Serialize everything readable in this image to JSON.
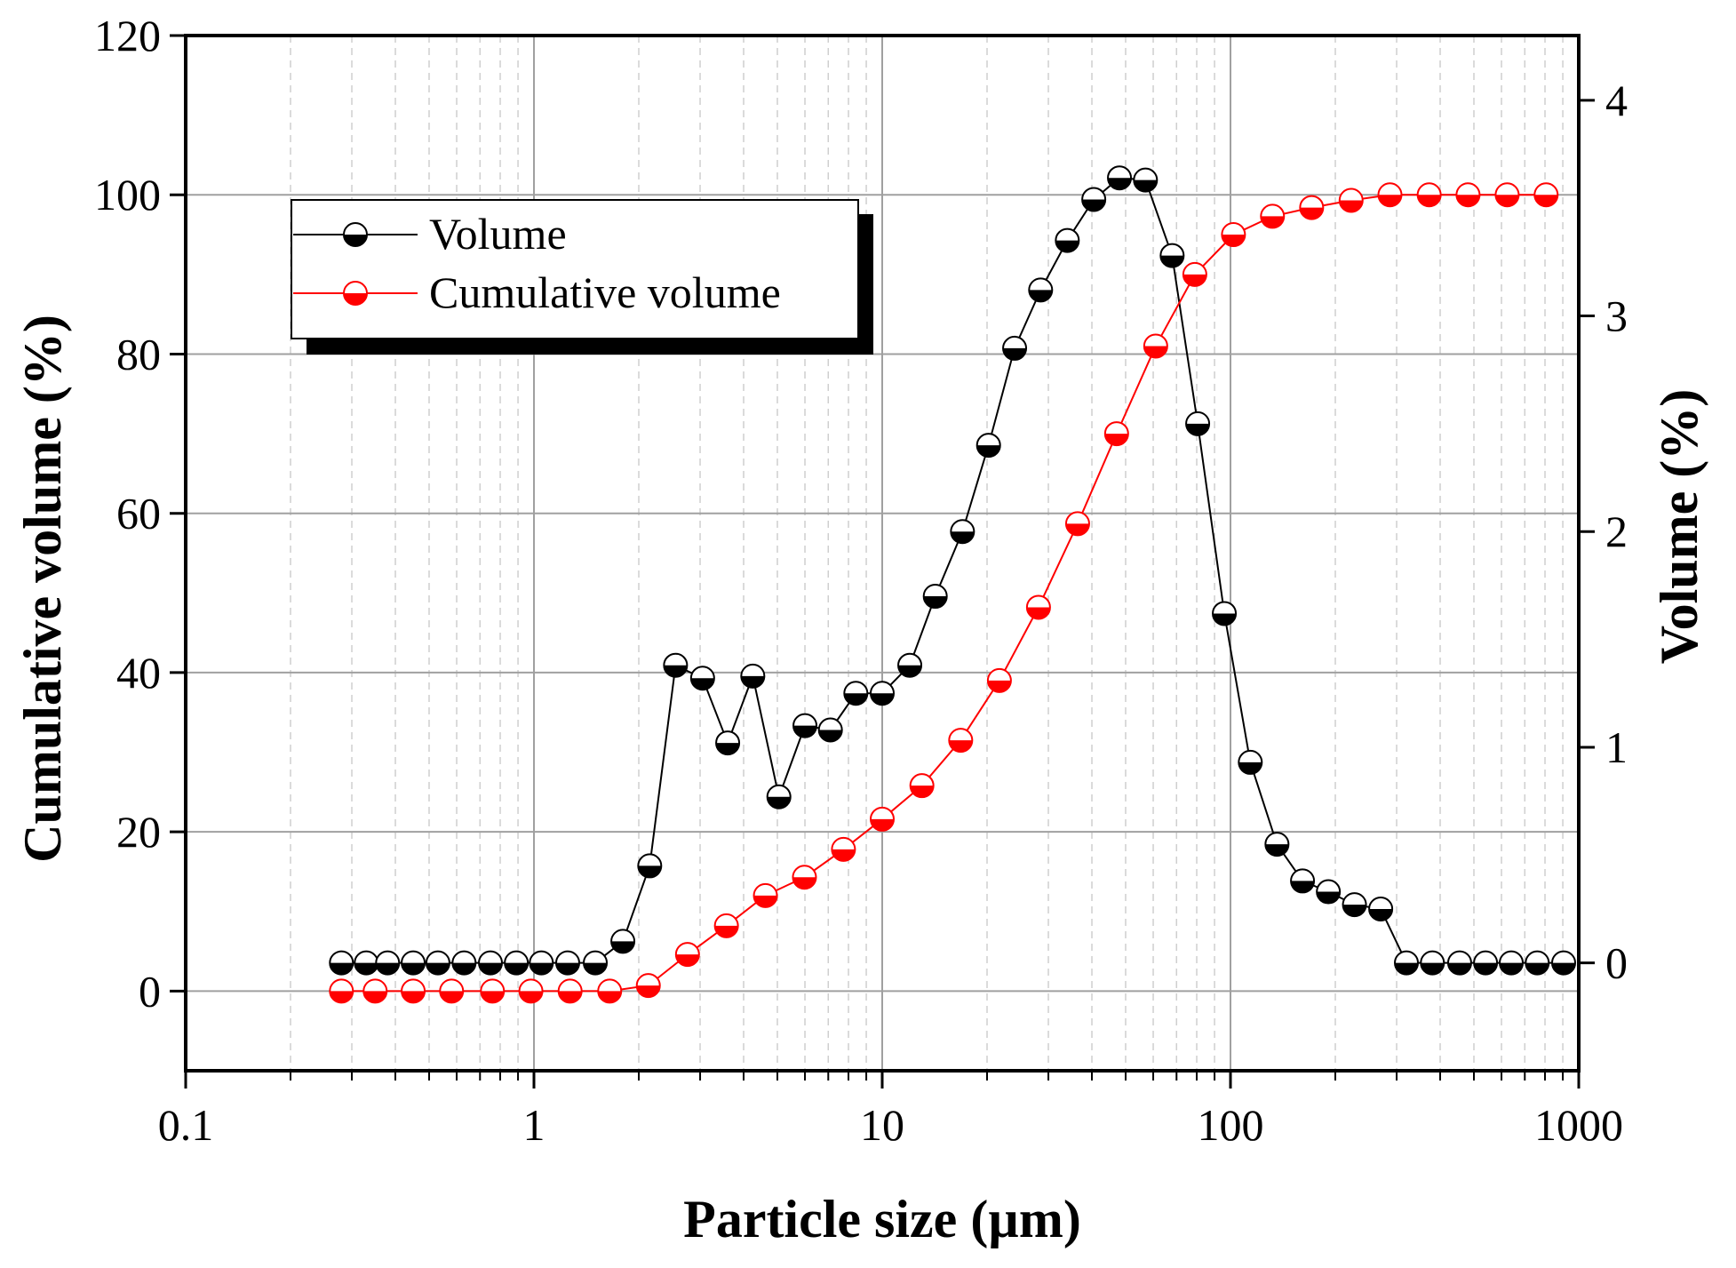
{
  "chart_data": {
    "type": "scatter",
    "title": "",
    "xlabel": "Particle size (µm)",
    "ylabel_left": "Cumulative volume (%)",
    "ylabel_right": "Volume (%)",
    "x_scale": "log",
    "xlim": [
      0.1,
      1000
    ],
    "ylim_left": [
      -10,
      120
    ],
    "ylim_right": [
      -0.5,
      4.3
    ],
    "x_ticks": [
      0.1,
      1,
      10,
      100,
      1000
    ],
    "x_tick_labels": [
      "0.1",
      "1",
      "10",
      "100",
      "1000"
    ],
    "y_left_ticks": [
      0,
      20,
      40,
      60,
      80,
      100,
      120
    ],
    "y_left_tick_labels": [
      "0",
      "20",
      "40",
      "60",
      "80",
      "100",
      "120"
    ],
    "y_right_ticks": [
      0,
      1,
      2,
      3,
      4
    ],
    "y_right_tick_labels": [
      "0",
      "1",
      "2",
      "3",
      "4"
    ],
    "grid": true,
    "legend_position": "top-left",
    "series": [
      {
        "name": "Volume",
        "axis": "right",
        "color": "#000000",
        "x": [
          0.28,
          0.33,
          0.38,
          0.45,
          0.53,
          0.63,
          0.75,
          0.89,
          1.05,
          1.25,
          1.5,
          1.8,
          2.15,
          2.55,
          3.05,
          3.6,
          4.25,
          5.05,
          6.0,
          7.1,
          8.4,
          10.0,
          12.0,
          14.2,
          17.0,
          20.2,
          24.0,
          28.5,
          34.0,
          40.5,
          48.0,
          57.0,
          68.0,
          80.5,
          96.0,
          114,
          136,
          161,
          191,
          227,
          270,
          320,
          380,
          455,
          540,
          640,
          760,
          905
        ],
        "values": [
          0.0,
          0.0,
          0.0,
          0.0,
          0.0,
          0.0,
          0.0,
          0.0,
          0.0,
          0.0,
          0.0,
          0.1,
          0.45,
          1.38,
          1.32,
          1.02,
          1.33,
          0.77,
          1.1,
          1.08,
          1.25,
          1.25,
          1.38,
          1.7,
          2.0,
          2.4,
          2.85,
          3.12,
          3.35,
          3.54,
          3.64,
          3.63,
          3.28,
          2.5,
          1.62,
          0.93,
          0.55,
          0.38,
          0.33,
          0.27,
          0.25,
          0.0,
          0.0,
          0.0,
          0.0,
          0.0,
          0.0,
          0.0
        ]
      },
      {
        "name": "Cumulative volume",
        "axis": "left",
        "color": "#ff0000",
        "x": [
          0.28,
          0.35,
          0.45,
          0.58,
          0.76,
          0.98,
          1.27,
          1.65,
          2.13,
          2.76,
          3.57,
          4.62,
          5.98,
          7.74,
          10.0,
          13.0,
          16.8,
          21.7,
          28.1,
          36.4,
          47.1,
          61.0,
          79.0,
          102,
          132,
          171,
          222,
          287,
          372,
          481,
          623,
          806
        ],
        "values": [
          0,
          0,
          0,
          0,
          0,
          0,
          0,
          0,
          0.7,
          4.6,
          8.2,
          12.0,
          14.3,
          17.8,
          21.6,
          25.8,
          31.5,
          39.0,
          48.2,
          58.7,
          70.0,
          81.0,
          90.0,
          95.0,
          97.3,
          98.4,
          99.3,
          100,
          100,
          100,
          100,
          100
        ]
      }
    ]
  }
}
